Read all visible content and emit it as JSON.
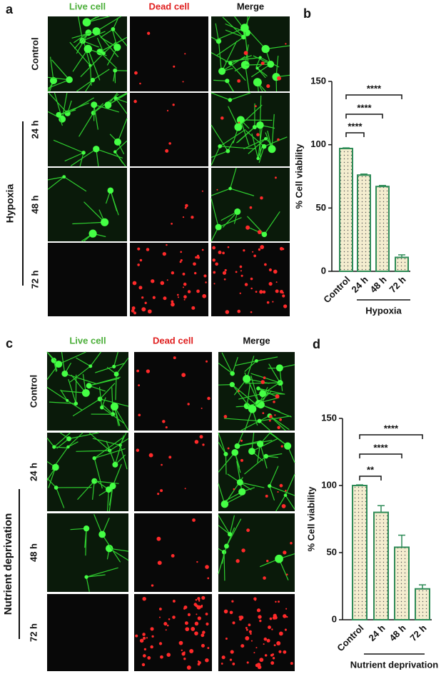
{
  "panel_a": {
    "label": "a",
    "columns": [
      "Live cell",
      "Dead cell",
      "Merge"
    ],
    "rows": [
      "Control",
      "24 h",
      "48 h",
      "72 h"
    ],
    "group": "Hypoxia"
  },
  "panel_c": {
    "label": "c",
    "columns": [
      "Live cell",
      "Dead cell",
      "Merge"
    ],
    "rows": [
      "Control",
      "24 h",
      "48 h",
      "72 h"
    ],
    "group": "Nutrient deprivation"
  },
  "chart_data": [
    {
      "type": "bar",
      "panel_label": "b",
      "ylabel": "% Cell viability",
      "categories": [
        "Control",
        "24 h",
        "48 h",
        "72 h"
      ],
      "group_label": "Hypoxia",
      "series": [
        {
          "color": "#2e8b57",
          "values": [
            97,
            76,
            67,
            11
          ],
          "errors": [
            0.5,
            0.8,
            0.8,
            2
          ]
        }
      ],
      "ylim": [
        0,
        150
      ],
      "yticks": [
        0,
        50,
        100,
        150
      ],
      "significance": [
        "****",
        "****",
        "****"
      ]
    },
    {
      "type": "bar",
      "panel_label": "d",
      "ylabel": "% Cell viability",
      "categories": [
        "Control",
        "24 h",
        "48 h",
        "72 h"
      ],
      "group_label": "Nutrient deprivation",
      "series": [
        {
          "color": "#2e8b57",
          "values": [
            100,
            80,
            54,
            23
          ],
          "errors": [
            0.5,
            5,
            9,
            3
          ]
        }
      ],
      "ylim": [
        0,
        150
      ],
      "yticks": [
        0,
        50,
        100,
        150
      ],
      "significance": [
        "**",
        "****",
        "****"
      ]
    }
  ]
}
